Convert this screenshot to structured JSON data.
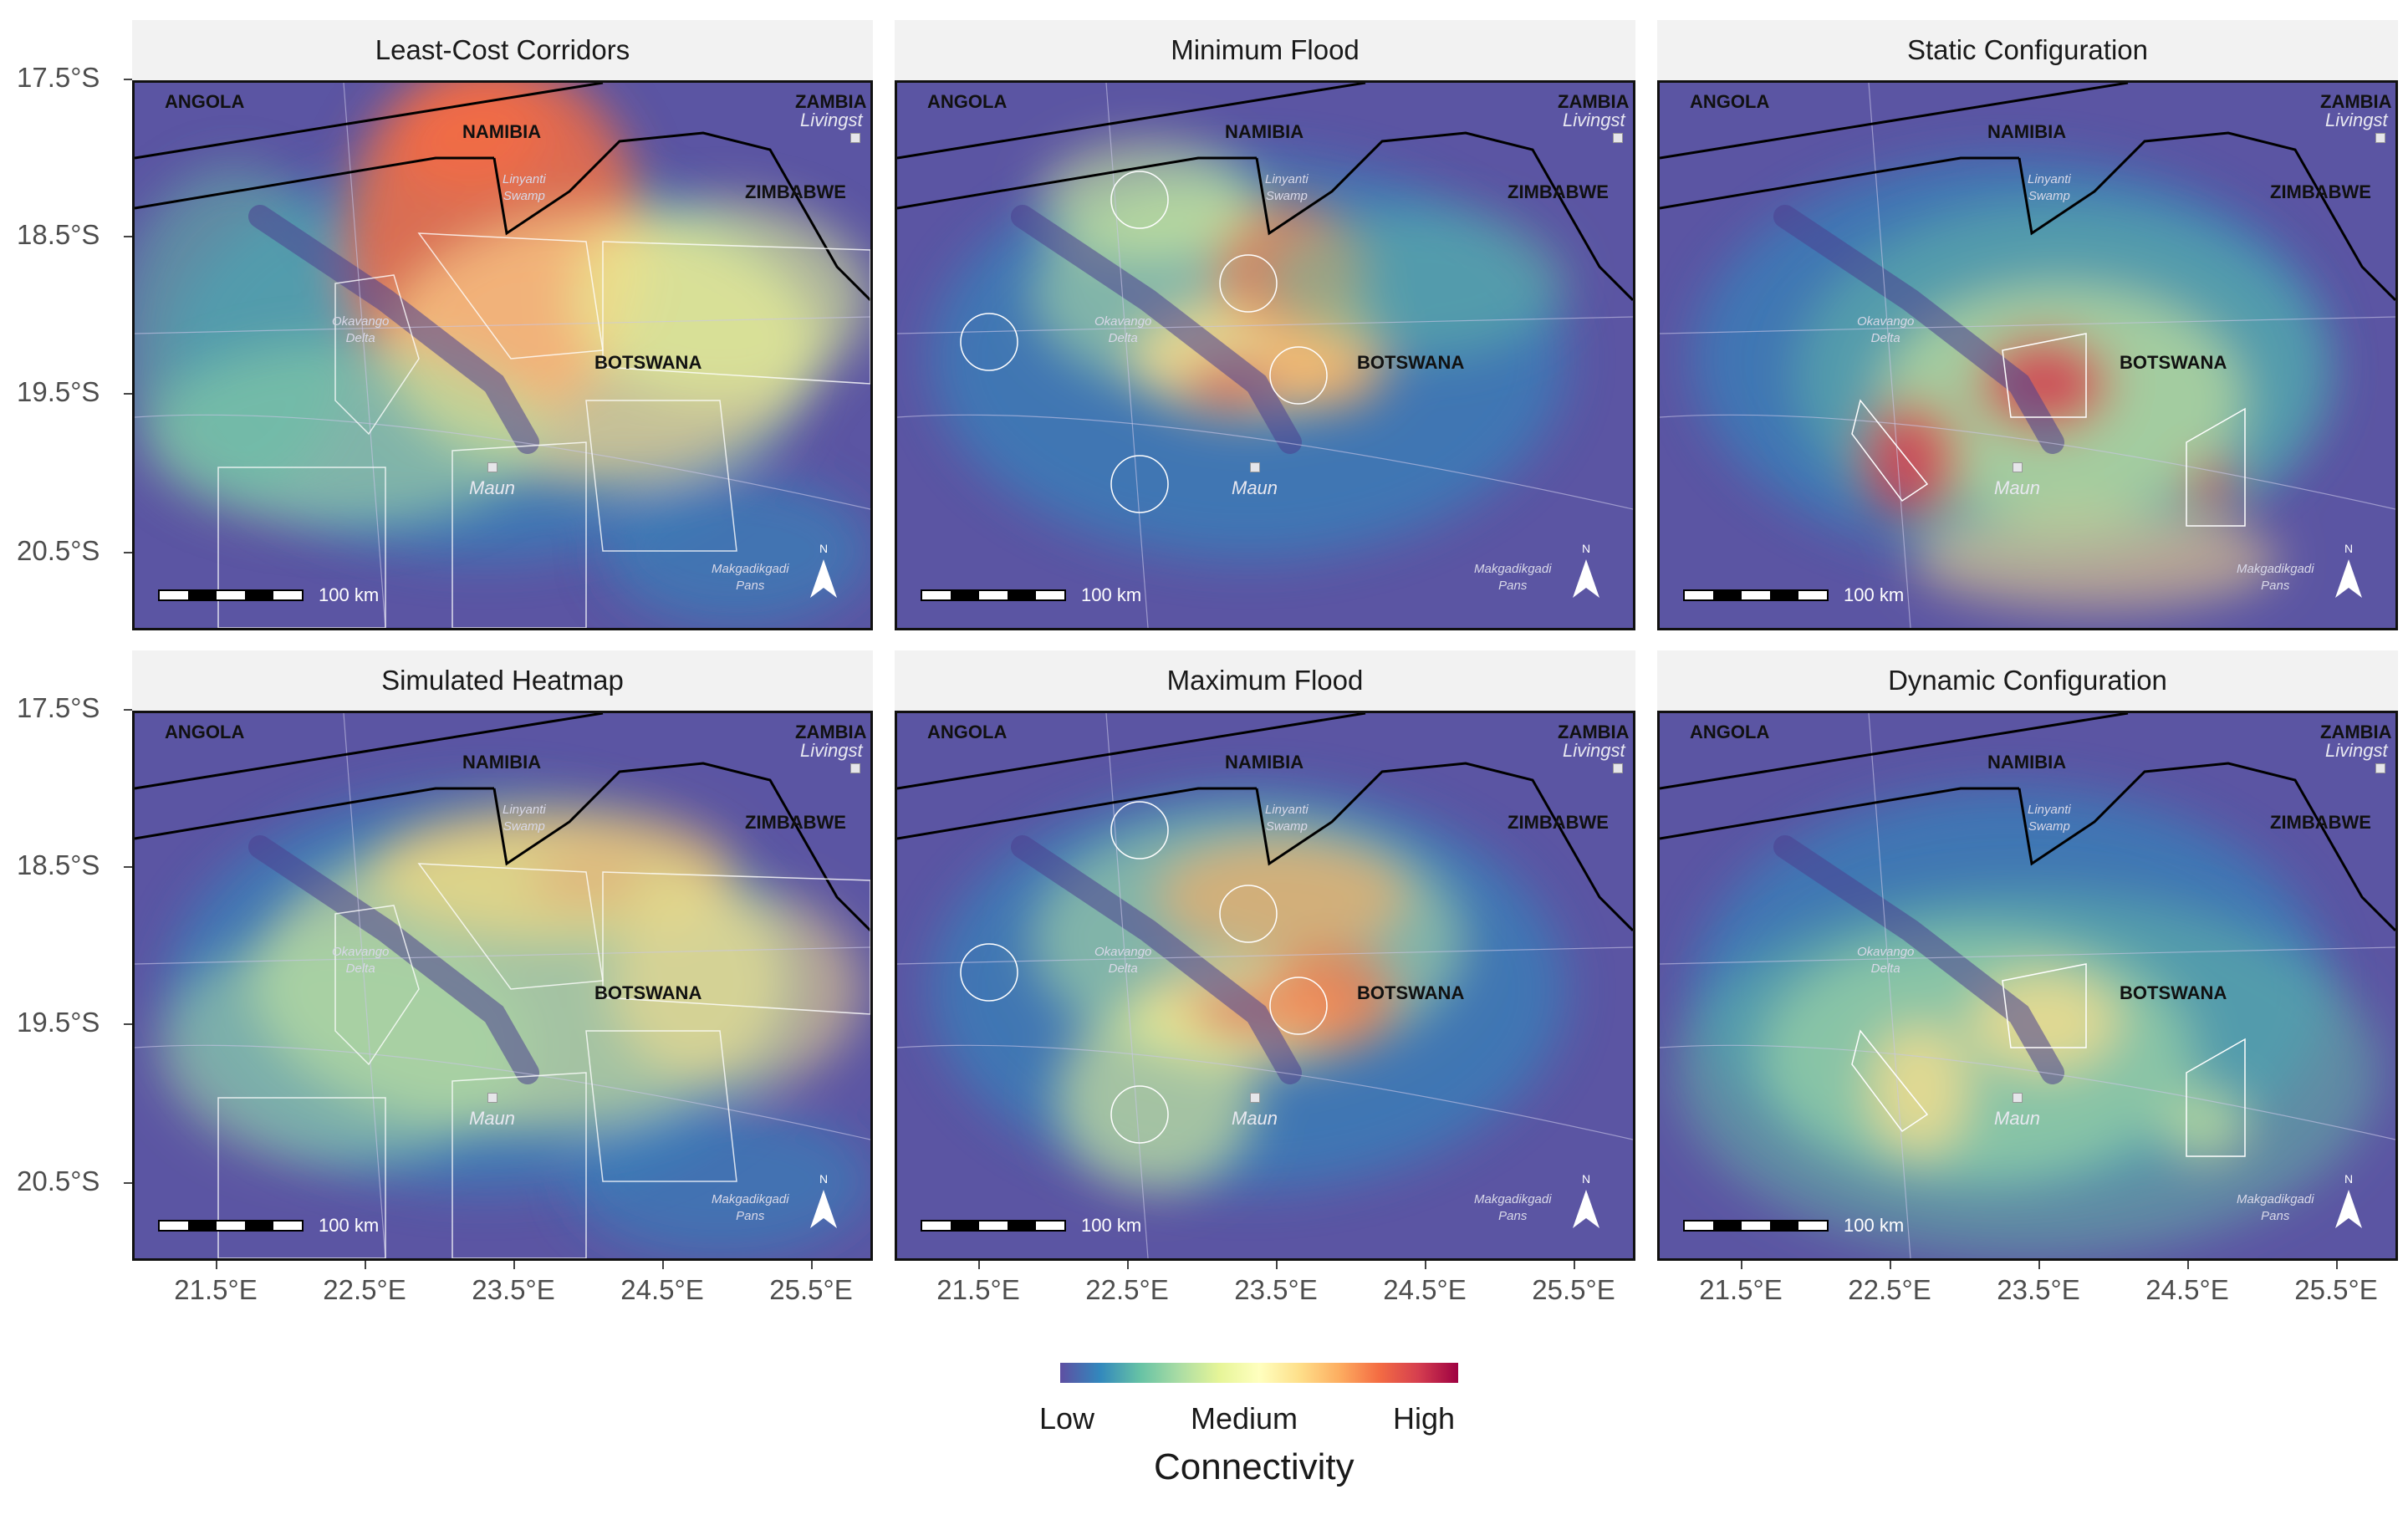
{
  "panels": [
    {
      "id": "p0",
      "title": "Least-Cost Corridors"
    },
    {
      "id": "p1",
      "title": "Minimum Flood"
    },
    {
      "id": "p2",
      "title": "Static Configuration"
    },
    {
      "id": "p3",
      "title": "Simulated Heatmap"
    },
    {
      "id": "p4",
      "title": "Maximum Flood"
    },
    {
      "id": "p5",
      "title": "Dynamic Configuration"
    }
  ],
  "map_labels": {
    "angola": "ANGOLA",
    "namibia": "NAMIBIA",
    "zambia": "ZAMBIA",
    "zimbabwe": "ZIMBABWE",
    "botswana": "BOTSWANA",
    "livingstone": "Livingst",
    "linyanti": "Linyanti\nSwamp",
    "okavango": "Okavango\nDelta",
    "maun": "Maun",
    "makgadikgadi": "Makgadikgadi\nPans",
    "scale": "100 km",
    "north": "N"
  },
  "axes": {
    "y_ticks": [
      "17.5°S",
      "18.5°S",
      "19.5°S",
      "20.5°S"
    ],
    "x_ticks": [
      "21.5°E",
      "22.5°E",
      "23.5°E",
      "24.5°E",
      "25.5°E"
    ]
  },
  "legend": {
    "title": "Connectivity",
    "low": "Low",
    "medium": "Medium",
    "high": "High",
    "colors": [
      "#5e4fa2",
      "#3288bd",
      "#66c2a5",
      "#abdda4",
      "#e6f598",
      "#ffffbf",
      "#fee08b",
      "#fdae61",
      "#f46d43",
      "#d53e4f",
      "#9e0142"
    ]
  }
}
